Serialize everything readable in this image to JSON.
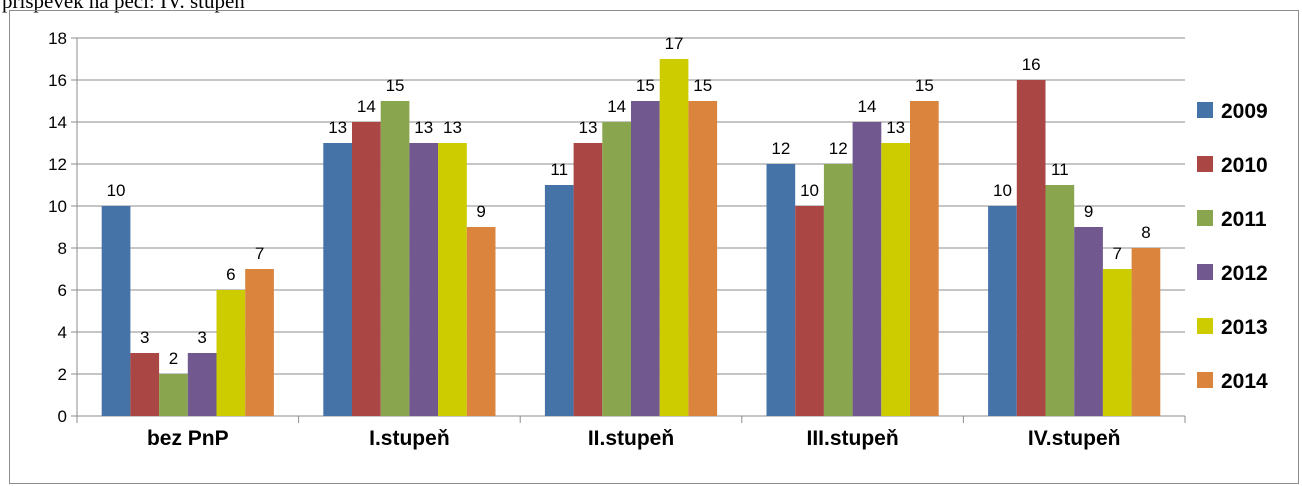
{
  "caption": "příspěvek na péči: IV. stupeň",
  "chart_data": {
    "type": "bar",
    "title": "",
    "xlabel": "",
    "ylabel": "",
    "ylim": [
      0,
      18
    ],
    "yticks": [
      0,
      2,
      4,
      6,
      8,
      10,
      12,
      14,
      16,
      18
    ],
    "grid": "horizontal",
    "legend_position": "right",
    "categories": [
      "bez PnP",
      "I.stupeň",
      "II.stupeň",
      "III.stupeň",
      "IV.stupeň"
    ],
    "series": [
      {
        "name": "2009",
        "color": "#4572A7",
        "values": [
          10,
          13,
          11,
          12,
          10
        ]
      },
      {
        "name": "2010",
        "color": "#AA4643",
        "values": [
          3,
          14,
          13,
          10,
          16
        ]
      },
      {
        "name": "2011",
        "color": "#89A54E",
        "values": [
          2,
          15,
          14,
          12,
          11
        ]
      },
      {
        "name": "2012",
        "color": "#71588F",
        "values": [
          3,
          13,
          15,
          14,
          9
        ]
      },
      {
        "name": "2013",
        "color": "#CCCC00",
        "values": [
          6,
          13,
          17,
          13,
          7
        ]
      },
      {
        "name": "2014",
        "color": "#DB843D",
        "values": [
          7,
          9,
          15,
          15,
          8
        ]
      }
    ]
  }
}
